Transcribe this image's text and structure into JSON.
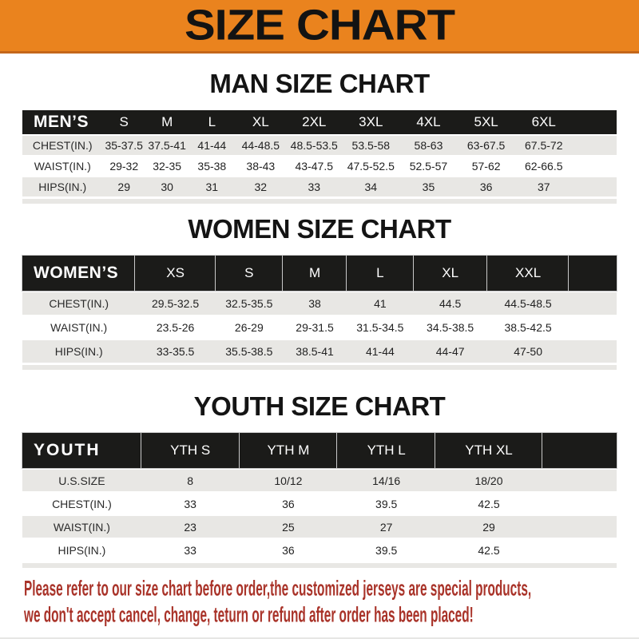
{
  "banner": {
    "title": "SIZE CHART"
  },
  "colors": {
    "banner_bg": "#EA831E",
    "banner_border": "#C4671B",
    "header_bar": "#1B1B19",
    "row_shade": "#E8E7E4",
    "disclaimer_red": "#A93329"
  },
  "sections": [
    {
      "id": "men",
      "heading": "MAN SIZE CHART",
      "corner_label": "MEN’S",
      "sizes": [
        "S",
        "M",
        "L",
        "XL",
        "2XL",
        "3XL",
        "4XL",
        "5XL",
        "6XL"
      ],
      "rows": [
        {
          "label": "CHEST(IN.)",
          "values": [
            "35-37.5",
            "37.5-41",
            "41-44",
            "44-48.5",
            "48.5-53.5",
            "53.5-58",
            "58-63",
            "63-67.5",
            "67.5-72"
          ]
        },
        {
          "label": "WAIST(IN.)",
          "values": [
            "29-32",
            "32-35",
            "35-38",
            "38-43",
            "43-47.5",
            "47.5-52.5",
            "52.5-57",
            "57-62",
            "62-66.5"
          ]
        },
        {
          "label": "HIPS(IN.)",
          "values": [
            "29",
            "30",
            "31",
            "32",
            "33",
            "34",
            "35",
            "36",
            "37"
          ]
        }
      ]
    },
    {
      "id": "women",
      "heading": "WOMEN SIZE CHART",
      "corner_label": "WOMEN’S",
      "sizes": [
        "XS",
        "S",
        "M",
        "L",
        "XL",
        "XXL"
      ],
      "rows": [
        {
          "label": "CHEST(IN.)",
          "values": [
            "29.5-32.5",
            "32.5-35.5",
            "38",
            "41",
            "44.5",
            "44.5-48.5"
          ]
        },
        {
          "label": "WAIST(IN.)",
          "values": [
            "23.5-26",
            "26-29",
            "29-31.5",
            "31.5-34.5",
            "34.5-38.5",
            "38.5-42.5"
          ]
        },
        {
          "label": "HIPS(IN.)",
          "values": [
            "33-35.5",
            "35.5-38.5",
            "38.5-41",
            "41-44",
            "44-47",
            "47-50"
          ]
        }
      ]
    },
    {
      "id": "youth",
      "heading": "YOUTH SIZE CHART",
      "corner_label": "YOUTH",
      "sizes": [
        "YTH S",
        "YTH M",
        "YTH L",
        "YTH XL"
      ],
      "rows": [
        {
          "label": "U.S.SIZE",
          "values": [
            "8",
            "10/12",
            "14/16",
            "18/20"
          ]
        },
        {
          "label": "CHEST(IN.)",
          "values": [
            "33",
            "36",
            "39.5",
            "42.5"
          ]
        },
        {
          "label": "WAIST(IN.)",
          "values": [
            "23",
            "25",
            "27",
            "29"
          ]
        },
        {
          "label": "HIPS(IN.)",
          "values": [
            "33",
            "36",
            "39.5",
            "42.5"
          ]
        }
      ]
    }
  ],
  "footer": {
    "line1": "Please refer to our size chart before order,the customized jerseys are special products,",
    "line2": "we don't accept cancel, change, teturn or refund after order has been placed!"
  }
}
